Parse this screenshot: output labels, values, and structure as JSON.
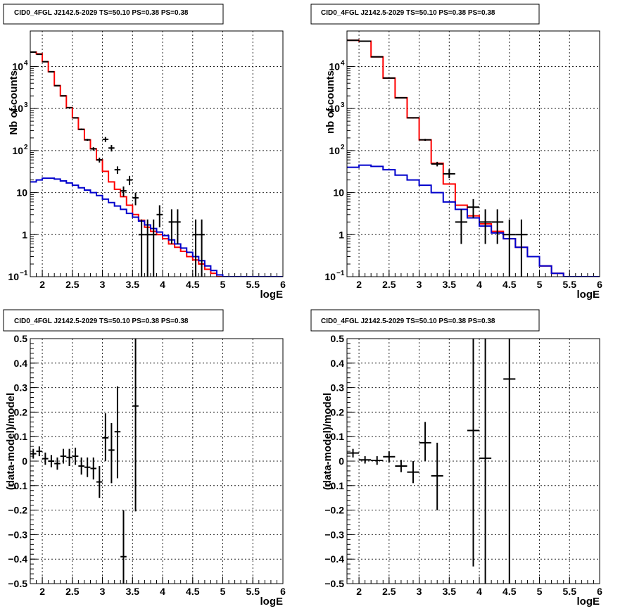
{
  "chart_data": [
    {
      "id": "top-left",
      "type": "line",
      "title": "CID0_4FGL J2142.5-2029 TS=50.10 PS=0.38 PS=0.38",
      "xlabel": "logE",
      "ylabel": "Nb of counts",
      "xlim": [
        1.8,
        6.0
      ],
      "ylim": [
        0.1,
        70000
      ],
      "yscale": "log",
      "grid": true,
      "xticks": [
        "2",
        "2.5",
        "3",
        "3.5",
        "4",
        "4.5",
        "5",
        "5.5",
        "6"
      ],
      "yticks": [
        {
          "base": "10",
          "exp": "−1"
        },
        {
          "base": "1",
          "exp": ""
        },
        {
          "base": "10",
          "exp": ""
        },
        {
          "base": "10",
          "exp": "2"
        },
        {
          "base": "10",
          "exp": "3"
        },
        {
          "base": "10",
          "exp": "4"
        }
      ],
      "series": [
        {
          "name": "",
          "color": "#ff0000",
          "style": "step",
          "bin_width": 0.1,
          "x": [
            1.8,
            1.9,
            2.0,
            2.1,
            2.2,
            2.3,
            2.4,
            2.5,
            2.6,
            2.7,
            2.8,
            2.9,
            3.0,
            3.1,
            3.2,
            3.3,
            3.4,
            3.5,
            3.6,
            3.7,
            3.8,
            3.9,
            4.0,
            4.1,
            4.2,
            4.3,
            4.4,
            4.5,
            4.6,
            4.7,
            4.8,
            4.9,
            5.0,
            5.1,
            5.2,
            5.3,
            5.4,
            5.5,
            5.6,
            5.7,
            5.8,
            5.9
          ],
          "y": [
            22000,
            20000,
            13000,
            7500,
            3500,
            2000,
            1050,
            600,
            320,
            180,
            110,
            60,
            32,
            18,
            12,
            8,
            5,
            3,
            2.2,
            1.5,
            1.2,
            1,
            0.8,
            0.6,
            0.5,
            0.4,
            0.3,
            0.25,
            0.2,
            0.15,
            0.12,
            0.1,
            0.1,
            0.1,
            0.1,
            0.1,
            0.1,
            0.1,
            0.1,
            0.1,
            0.1,
            0.1
          ]
        },
        {
          "name": "",
          "color": "#0000cc",
          "style": "step",
          "bin_width": 0.1,
          "x": [
            1.8,
            1.9,
            2.0,
            2.1,
            2.2,
            2.3,
            2.4,
            2.5,
            2.6,
            2.7,
            2.8,
            2.9,
            3.0,
            3.1,
            3.2,
            3.3,
            3.4,
            3.5,
            3.6,
            3.7,
            3.8,
            3.9,
            4.0,
            4.1,
            4.2,
            4.3,
            4.4,
            4.5,
            4.6,
            4.7,
            4.8,
            4.9,
            5.0,
            5.1,
            5.2,
            5.3,
            5.4,
            5.5,
            5.6,
            5.7,
            5.8,
            5.9
          ],
          "y": [
            18,
            20,
            22,
            22,
            21,
            19,
            17,
            15,
            13,
            11.5,
            10,
            8.5,
            7,
            5.8,
            4.8,
            4,
            3.2,
            2.6,
            2.1,
            1.7,
            1.4,
            1.15,
            0.95,
            0.75,
            0.6,
            0.48,
            0.38,
            0.3,
            0.24,
            0.18,
            0.14,
            0.11,
            0.1,
            0.1,
            0.1,
            0.1,
            0.1,
            0.1,
            0.1,
            0.1,
            0.1,
            0.1
          ]
        },
        {
          "name": "",
          "color": "#000000",
          "style": "errorbar",
          "xerr": 0.05,
          "x": [
            1.85,
            1.95,
            2.05,
            2.15,
            2.25,
            2.35,
            2.45,
            2.55,
            2.65,
            2.75,
            2.85,
            2.95,
            3.05,
            3.15,
            3.25,
            3.35,
            3.45,
            3.55,
            3.65,
            3.75,
            3.85,
            3.95,
            4.15,
            4.25,
            4.55,
            4.65
          ],
          "y": [
            22000,
            19500,
            13000,
            7500,
            3500,
            2000,
            1050,
            600,
            320,
            180,
            110,
            60,
            185,
            115,
            35,
            11,
            20,
            7.5,
            1,
            1,
            1,
            3,
            2,
            2,
            1,
            1
          ],
          "ylo": [
            21800,
            19300,
            12900,
            7400,
            3450,
            1960,
            1020,
            580,
            305,
            170,
            100,
            52,
            160,
            95,
            28,
            8,
            15,
            5,
            0.1,
            0.1,
            0.1,
            1.5,
            0.6,
            0.6,
            0.1,
            0.1
          ],
          "yhi": [
            22200,
            19700,
            13100,
            7600,
            3550,
            2040,
            1080,
            620,
            335,
            190,
            120,
            68,
            210,
            135,
            42,
            14,
            25,
            10,
            2.3,
            2.3,
            2.3,
            5,
            4,
            4,
            2.3,
            2.3
          ]
        }
      ]
    },
    {
      "id": "top-right",
      "type": "line",
      "title": "CID0_4FGL J2142.5-2029 TS=50.10 PS=0.38 PS=0.38",
      "xlabel": "logE",
      "ylabel": "nb of counts",
      "xlim": [
        1.8,
        6.0
      ],
      "ylim": [
        0.1,
        70000
      ],
      "yscale": "log",
      "grid": true,
      "xticks": [
        "2",
        "2.5",
        "3",
        "3.5",
        "4",
        "4.5",
        "5",
        "5.5",
        "6"
      ],
      "yticks": [
        {
          "base": "10",
          "exp": "−1"
        },
        {
          "base": "1",
          "exp": ""
        },
        {
          "base": "10",
          "exp": ""
        },
        {
          "base": "10",
          "exp": "2"
        },
        {
          "base": "10",
          "exp": "3"
        },
        {
          "base": "10",
          "exp": "4"
        }
      ],
      "series": [
        {
          "name": "",
          "color": "#ff0000",
          "style": "step",
          "bin_width": 0.2,
          "x": [
            1.8,
            2.0,
            2.2,
            2.4,
            2.6,
            2.8,
            3.0,
            3.2,
            3.4,
            3.6,
            3.8,
            4.0,
            4.2,
            4.4,
            4.6,
            4.8,
            5.0,
            5.2,
            5.4,
            5.6,
            5.8
          ],
          "y": [
            42000,
            40000,
            17000,
            5300,
            1800,
            600,
            180,
            50,
            16,
            5,
            2.8,
            1.8,
            1.2,
            0.8,
            0.5,
            0.3,
            0.18,
            0.12,
            0.1,
            0.1,
            0.1
          ]
        },
        {
          "name": "",
          "color": "#0000cc",
          "style": "step",
          "bin_width": 0.2,
          "x": [
            1.8,
            2.0,
            2.2,
            2.4,
            2.6,
            2.8,
            3.0,
            3.2,
            3.4,
            3.6,
            3.8,
            4.0,
            4.2,
            4.4,
            4.6,
            4.8,
            5.0,
            5.2,
            5.4,
            5.6,
            5.8
          ],
          "y": [
            40,
            45,
            42,
            35,
            26,
            20,
            15,
            10,
            6,
            4,
            2.5,
            1.6,
            1.1,
            0.8,
            0.5,
            0.3,
            0.18,
            0.12,
            0.1,
            0.1,
            0.1
          ]
        },
        {
          "name": "",
          "color": "#000000",
          "style": "errorbar",
          "xerr": 0.1,
          "x": [
            1.9,
            2.1,
            2.3,
            2.5,
            2.7,
            2.9,
            3.1,
            3.3,
            3.5,
            3.7,
            3.9,
            4.1,
            4.3,
            4.5,
            4.7
          ],
          "y": [
            42000,
            40000,
            17000,
            5300,
            1800,
            600,
            180,
            48,
            28,
            2,
            4.5,
            2,
            2,
            1,
            1
          ],
          "ylo": [
            41800,
            39800,
            16900,
            5250,
            1760,
            580,
            170,
            42,
            22,
            0.6,
            2.5,
            0.6,
            0.6,
            0.1,
            0.1
          ],
          "yhi": [
            42200,
            40200,
            17100,
            5350,
            1840,
            620,
            190,
            54,
            36,
            4,
            7,
            4,
            4,
            2.3,
            2.3
          ]
        }
      ]
    },
    {
      "id": "bottom-left",
      "type": "scatter",
      "title": "CID0_4FGL J2142.5-2029 TS=50.10 PS=0.38 PS=0.38",
      "xlabel": "logE",
      "ylabel": "(data-model)/model",
      "xlim": [
        1.8,
        6.0
      ],
      "ylim": [
        -0.5,
        0.5
      ],
      "yscale": "linear",
      "grid": true,
      "xticks": [
        "2",
        "2.5",
        "3",
        "3.5",
        "4",
        "4.5",
        "5",
        "5.5",
        "6"
      ],
      "yticks": [
        "−0.5",
        "−0.4",
        "−0.3",
        "−0.2",
        "−0.1",
        "0",
        "0.1",
        "0.2",
        "0.3",
        "0.4",
        "0.5"
      ],
      "series": [
        {
          "name": "",
          "color": "#000000",
          "style": "errorbar",
          "xerr": 0.05,
          "x": [
            1.85,
            1.95,
            2.05,
            2.15,
            2.25,
            2.35,
            2.45,
            2.55,
            2.65,
            2.75,
            2.85,
            2.95,
            3.05,
            3.15,
            3.25,
            3.35,
            3.55
          ],
          "y": [
            0.03,
            0.04,
            0.01,
            0.0,
            -0.01,
            0.02,
            0.015,
            0.02,
            -0.02,
            -0.025,
            -0.03,
            -0.085,
            0.095,
            0.045,
            0.12,
            -0.39,
            0.225
          ],
          "ylo": [
            0.01,
            0.02,
            -0.015,
            -0.025,
            -0.035,
            -0.01,
            -0.02,
            -0.015,
            -0.055,
            -0.065,
            -0.075,
            -0.15,
            0.0,
            -0.09,
            -0.07,
            -0.5,
            -0.205
          ],
          "yhi": [
            0.05,
            0.06,
            0.035,
            0.025,
            0.015,
            0.05,
            0.05,
            0.055,
            0.015,
            0.015,
            0.015,
            -0.02,
            0.195,
            0.155,
            0.305,
            -0.2,
            0.5
          ]
        }
      ]
    },
    {
      "id": "bottom-right",
      "type": "scatter",
      "title": "CID0_4FGL J2142.5-2029 TS=50.10 PS=0.38 PS=0.38",
      "xlabel": "logE",
      "ylabel": "(data-model)/model",
      "xlim": [
        1.8,
        6.0
      ],
      "ylim": [
        -0.5,
        0.5
      ],
      "yscale": "linear",
      "grid": true,
      "xticks": [
        "2",
        "2.5",
        "3",
        "3.5",
        "4",
        "4.5",
        "5",
        "5.5",
        "6"
      ],
      "yticks": [
        "−0.5",
        "−0.4",
        "−0.3",
        "−0.2",
        "−0.1",
        "0",
        "0.1",
        "0.2",
        "0.3",
        "0.4",
        "0.5"
      ],
      "series": [
        {
          "name": "",
          "color": "#000000",
          "style": "errorbar",
          "xerr": 0.1,
          "x": [
            1.9,
            2.1,
            2.3,
            2.5,
            2.7,
            2.9,
            3.1,
            3.3,
            3.9,
            4.1,
            4.5
          ],
          "y": [
            0.033,
            0.005,
            0.003,
            0.018,
            -0.02,
            -0.045,
            0.075,
            -0.06,
            0.125,
            0.012,
            0.335
          ],
          "ylo": [
            0.015,
            -0.01,
            -0.015,
            -0.005,
            -0.045,
            -0.09,
            0.0,
            -0.2,
            -0.43,
            -0.5,
            -0.5
          ],
          "yhi": [
            0.05,
            0.02,
            0.02,
            0.04,
            0.005,
            0.0,
            0.16,
            0.075,
            0.5,
            0.5,
            0.5
          ]
        }
      ]
    }
  ]
}
